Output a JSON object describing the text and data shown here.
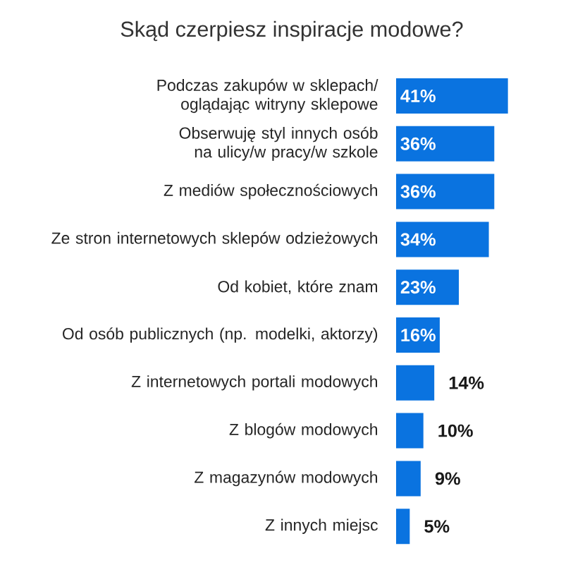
{
  "chart_data": {
    "type": "bar",
    "orientation": "horizontal",
    "title": "Skąd czerpiesz inspiracje modowe?",
    "categories": [
      "Podczas zakupów w sklepach/ oglądając witryny sklepowe",
      "Obserwuję styl innych osób na ulicy/w pracy/w szkole",
      "Z mediów społecznościowych",
      "Ze stron internetowych sklepów odzieżowych",
      "Od kobiet, które znam",
      "Od osób publicznych (np. modelki, aktorzy)",
      "Z internetowych portali modowych",
      "Z blogów modowych",
      "Z magazynów modowych",
      "Z innych miejsc"
    ],
    "values": [
      41,
      36,
      36,
      34,
      23,
      16,
      14,
      10,
      9,
      5
    ],
    "value_labels": [
      "41%",
      "36%",
      "36%",
      "34%",
      "23%",
      "16%",
      "14%",
      "10%",
      "9%",
      "5%"
    ],
    "color": "#0a73e0"
  }
}
